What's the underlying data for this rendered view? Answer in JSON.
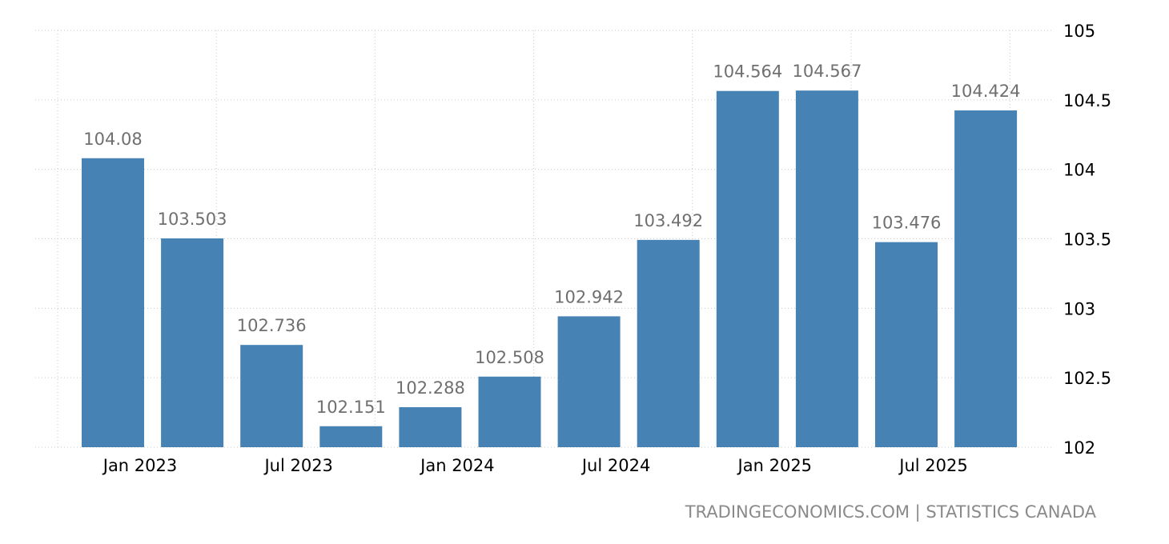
{
  "source_text": "TRADINGECONOMICS.COM | STATISTICS CANADA",
  "chart_data": {
    "type": "bar",
    "categories": [
      "2023-01",
      "2023-04",
      "2023-07",
      "2023-10",
      "2024-01",
      "2024-04",
      "2024-07",
      "2024-10",
      "2025-01",
      "2025-04",
      "2025-07",
      "2025-10"
    ],
    "values": [
      104.08,
      103.503,
      102.736,
      102.151,
      102.288,
      102.508,
      102.942,
      103.492,
      104.564,
      104.567,
      103.476,
      104.424
    ],
    "value_labels": [
      "104.08",
      "103.503",
      "102.736",
      "102.151",
      "102.288",
      "102.508",
      "102.942",
      "103.492",
      "104.564",
      "104.567",
      "103.476",
      "104.424"
    ],
    "x_ticks": [
      {
        "category": "2023-01",
        "label": "Jan 2023"
      },
      {
        "category": "2023-07",
        "label": "Jul 2023"
      },
      {
        "category": "2024-01",
        "label": "Jan 2024"
      },
      {
        "category": "2024-07",
        "label": "Jul 2024"
      },
      {
        "category": "2025-01",
        "label": "Jan 2025"
      },
      {
        "category": "2025-07",
        "label": "Jul 2025"
      }
    ],
    "y_ticks": [
      "102",
      "102.5",
      "103",
      "103.5",
      "104",
      "104.5",
      "105"
    ],
    "ylim": [
      102,
      105
    ],
    "y_axis_side": "right",
    "grid": true,
    "colors": {
      "bar": "#4682b4",
      "data_label": "#6f6f6f",
      "grid": "#c8c8c8"
    },
    "title": "",
    "xlabel": "",
    "ylabel": ""
  }
}
